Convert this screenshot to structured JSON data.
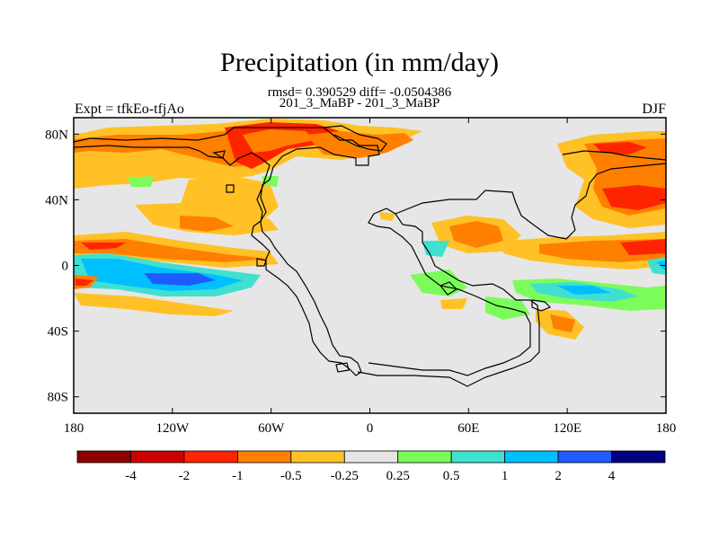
{
  "title": "Precipitation (in mm/day)",
  "stats_line": "rmsd= 0.390529 diff= -0.0504386",
  "run_line": "201_3_MaBP - 201_3_MaBP",
  "left_label": "Expt = tfkEo-tfjAo",
  "right_label": "DJF",
  "map": {
    "projection": "cylindrical-equidistant",
    "lon_range": [
      -180,
      180
    ],
    "lat_range": [
      -90,
      90
    ],
    "background_color": "#e6e6e6",
    "coastline_color": "#000000",
    "lon_tick_labels": [
      "180",
      "120W",
      "60W",
      "0",
      "60E",
      "120E",
      "180"
    ],
    "lat_tick_labels": [
      "80N",
      "40N",
      "0",
      "40S",
      "80S"
    ]
  },
  "colorbar": {
    "colors": [
      "#8b0000",
      "#cc0000",
      "#ff2400",
      "#ff7f00",
      "#ffc125",
      "#e6e6e6",
      "#7cfc5a",
      "#40e0d0",
      "#00bfff",
      "#1e5bff",
      "#000080"
    ],
    "labels": [
      "-4",
      "-2",
      "-1",
      "-0.5",
      "-0.25",
      "0.25",
      "0.5",
      "1",
      "2",
      "4"
    ]
  }
}
